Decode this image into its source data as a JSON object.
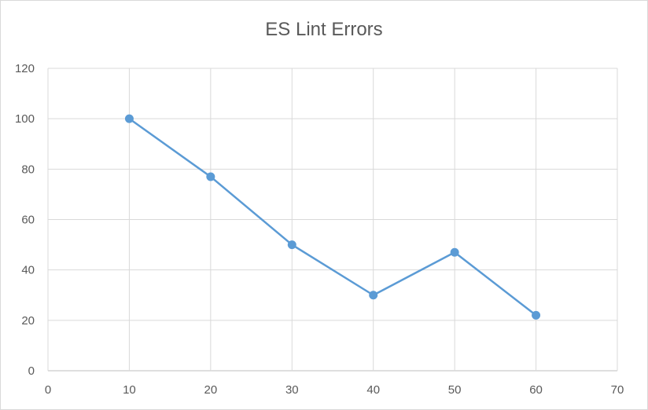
{
  "chart_data": {
    "type": "line",
    "title": "ES Lint Errors",
    "xlabel": "",
    "ylabel": "",
    "xlim": [
      0,
      70
    ],
    "ylim": [
      0,
      120
    ],
    "x_ticks": [
      0,
      10,
      20,
      30,
      40,
      50,
      60,
      70
    ],
    "y_ticks": [
      0,
      20,
      40,
      60,
      80,
      100,
      120
    ],
    "grid": true,
    "legend": "none",
    "series": [
      {
        "color": "#5b9bd5",
        "marker": "circle",
        "x": [
          10,
          20,
          30,
          40,
          50,
          60
        ],
        "y": [
          100,
          77,
          50,
          30,
          47,
          22
        ]
      }
    ]
  }
}
